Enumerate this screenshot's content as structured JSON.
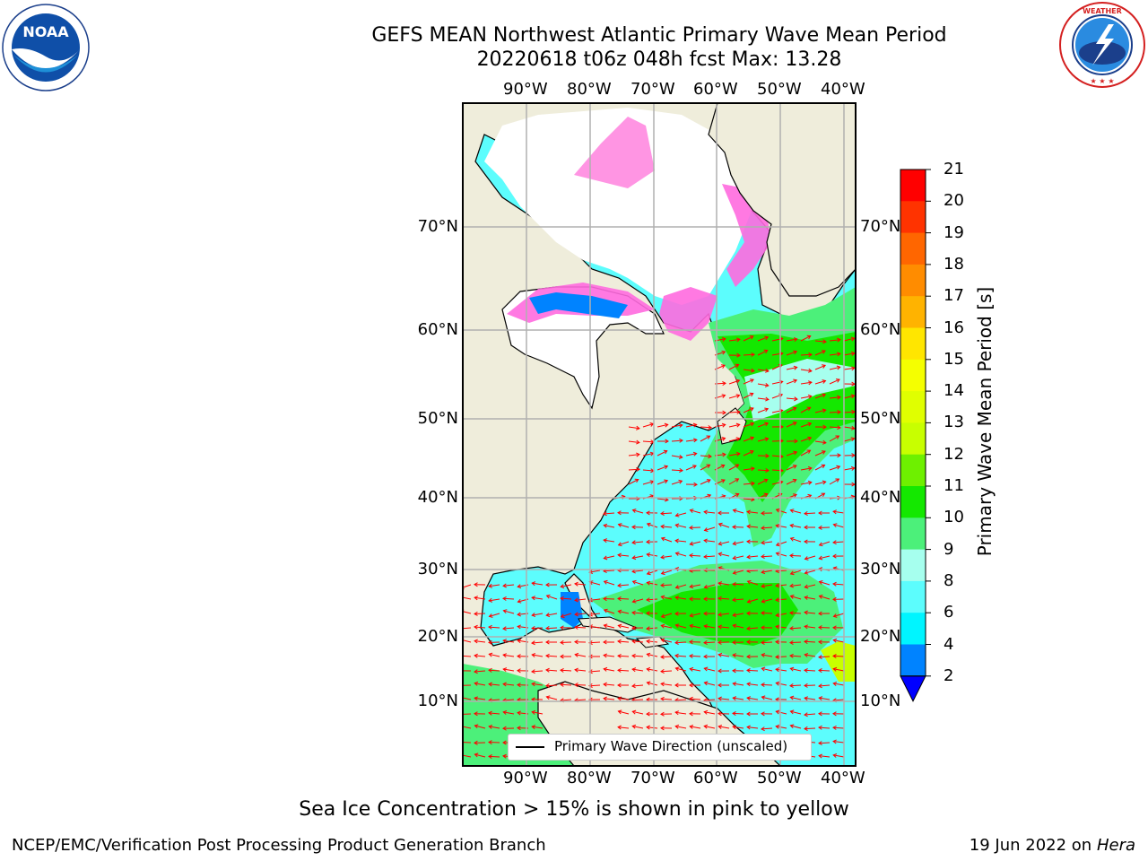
{
  "title": {
    "line1": "GEFS MEAN Northwest Atlantic Primary Wave Mean Period",
    "line2": "20220618 t06z 048h fcst   Max: 13.28"
  },
  "logos": {
    "left": {
      "text": "NOAA",
      "ring_text_top": "NATIONAL OCEANIC AND ATMOSPHERIC ADMINISTRATION",
      "ring_text_bottom": "U.S. DEPARTMENT OF COMMERCE",
      "icon": "noaa-logo"
    },
    "right": {
      "ring_text": "NATIONAL WEATHER SERVICE",
      "icon": "nws-logo"
    }
  },
  "map": {
    "lon_labels": [
      "90°W",
      "80°W",
      "70°W",
      "60°W",
      "50°W",
      "40°W"
    ],
    "lat_labels": [
      "70°N",
      "60°N",
      "50°N",
      "40°N",
      "30°N",
      "20°N",
      "10°N"
    ],
    "legend_label": "Primary Wave Direction (unscaled)",
    "colors": {
      "land": "#efeddb",
      "ice_free_ocean": "#ffffff",
      "grid": "#b0b0b0",
      "arrows": "#ff0000"
    }
  },
  "colorbar": {
    "title": "Primary Wave Mean Period [s]",
    "ticks": [
      "21",
      "20",
      "19",
      "18",
      "17",
      "16",
      "15",
      "14",
      "13",
      "12",
      "11",
      "10",
      "9",
      "8",
      "6",
      "4",
      "2"
    ],
    "colors": [
      "#ff0000",
      "#ff3300",
      "#ff6600",
      "#ff8c00",
      "#ffb300",
      "#ffe600",
      "#f5ff00",
      "#e0ff00",
      "#c8ff00",
      "#6ef000",
      "#14e800",
      "#4cf07a",
      "#a6ffee",
      "#5cfdfd",
      "#00f5ff",
      "#0083ff"
    ],
    "under_color": "#0000ff"
  },
  "footer": {
    "note": "Sea Ice Concentration > 15% is shown in pink to yellow",
    "left": "NCEP/EMC/Verification Post Processing Product Generation Branch",
    "right_date": "19 Jun 2022 on",
    "right_host": "Hera"
  }
}
